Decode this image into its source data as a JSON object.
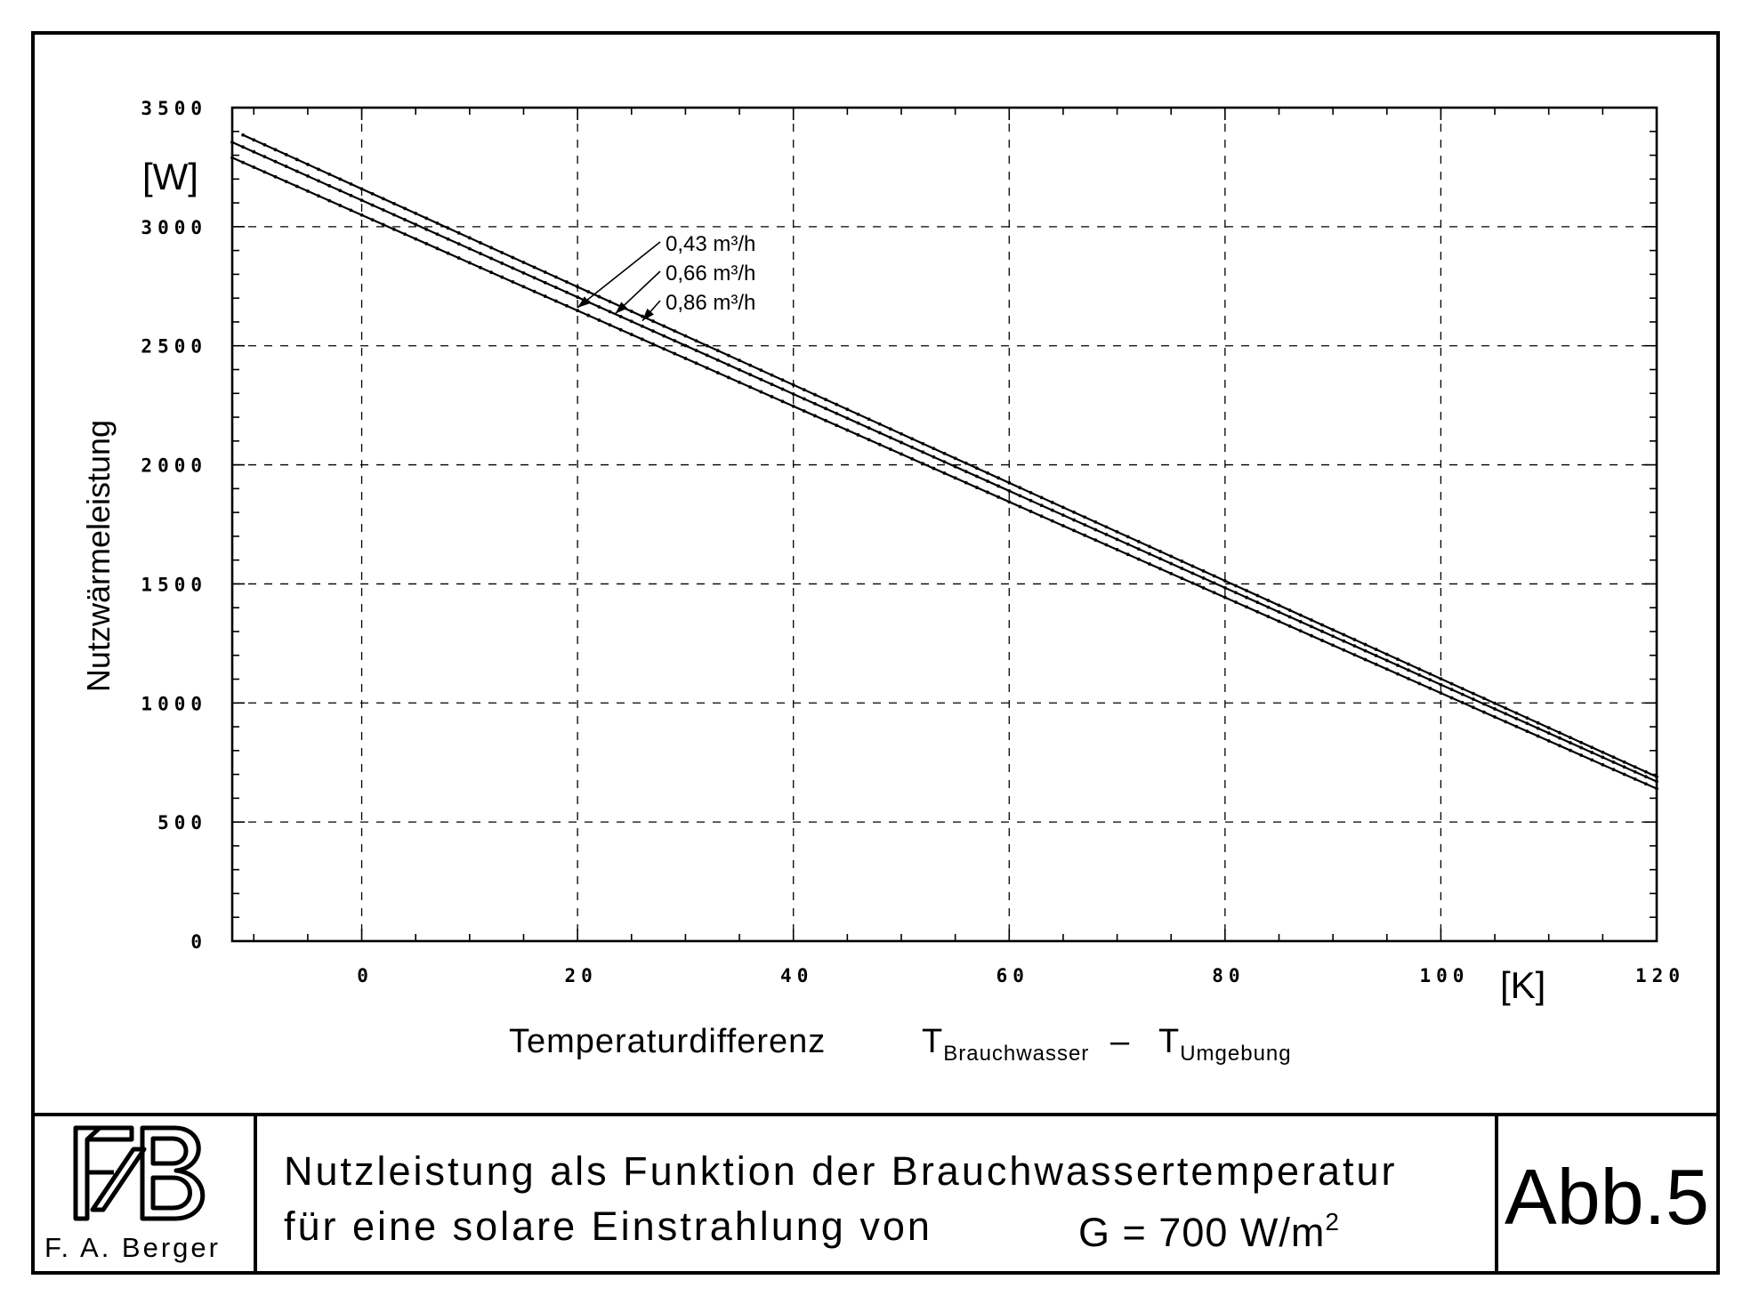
{
  "chart_data": {
    "type": "line",
    "title": "",
    "xlabel": "Temperaturdifferenz",
    "xlabel_term1": "T",
    "xlabel_sub1": "Brauchwasser",
    "xlabel_dash": "–",
    "xlabel_term2": "T",
    "xlabel_sub2": "Umgebung",
    "x_unit": "[K]",
    "ylabel": "Nutzwärmeleistung",
    "y_unit": "[W]",
    "xlim": [
      -12,
      120
    ],
    "ylim": [
      0,
      3500
    ],
    "x_ticks": [
      0,
      20,
      40,
      60,
      80,
      100,
      120
    ],
    "x_tick_labels": [
      "0",
      "20",
      "40",
      "60",
      "80",
      "100",
      "120"
    ],
    "y_ticks": [
      0,
      500,
      1000,
      1500,
      2000,
      2500,
      3000,
      3500
    ],
    "y_tick_labels": [
      "0",
      "500",
      "1000",
      "1500",
      "2000",
      "2500",
      "3000",
      "3500"
    ],
    "grid": true,
    "series": [
      {
        "name": "0,43 m³/h",
        "x": [
          -11,
          120
        ],
        "y": [
          3385,
          690
        ]
      },
      {
        "name": "0,66 m³/h",
        "x": [
          -12,
          120
        ],
        "y": [
          3355,
          670
        ]
      },
      {
        "name": "0,86 m³/h",
        "x": [
          -12,
          120
        ],
        "y": [
          3290,
          640
        ]
      }
    ],
    "annotations": [
      {
        "text": "0,43  m³/h",
        "point": [
          20,
          2660
        ]
      },
      {
        "text": "0,66  m³/h",
        "point": [
          23.5,
          2635
        ]
      },
      {
        "text": "0,86  m³/h",
        "point": [
          26,
          2605
        ]
      }
    ]
  },
  "caption": {
    "line1": "Nutzleistung als Funktion der Brauchwassertemperatur",
    "line2": "für eine solare Einstrahlung von",
    "formula": "G = 700 W/m",
    "formula_sup": "2"
  },
  "figure_label": "Abb.5",
  "author": "F. A. Berger",
  "logo": {
    "name": "FAB-monogram-logo",
    "text": "FAB"
  }
}
